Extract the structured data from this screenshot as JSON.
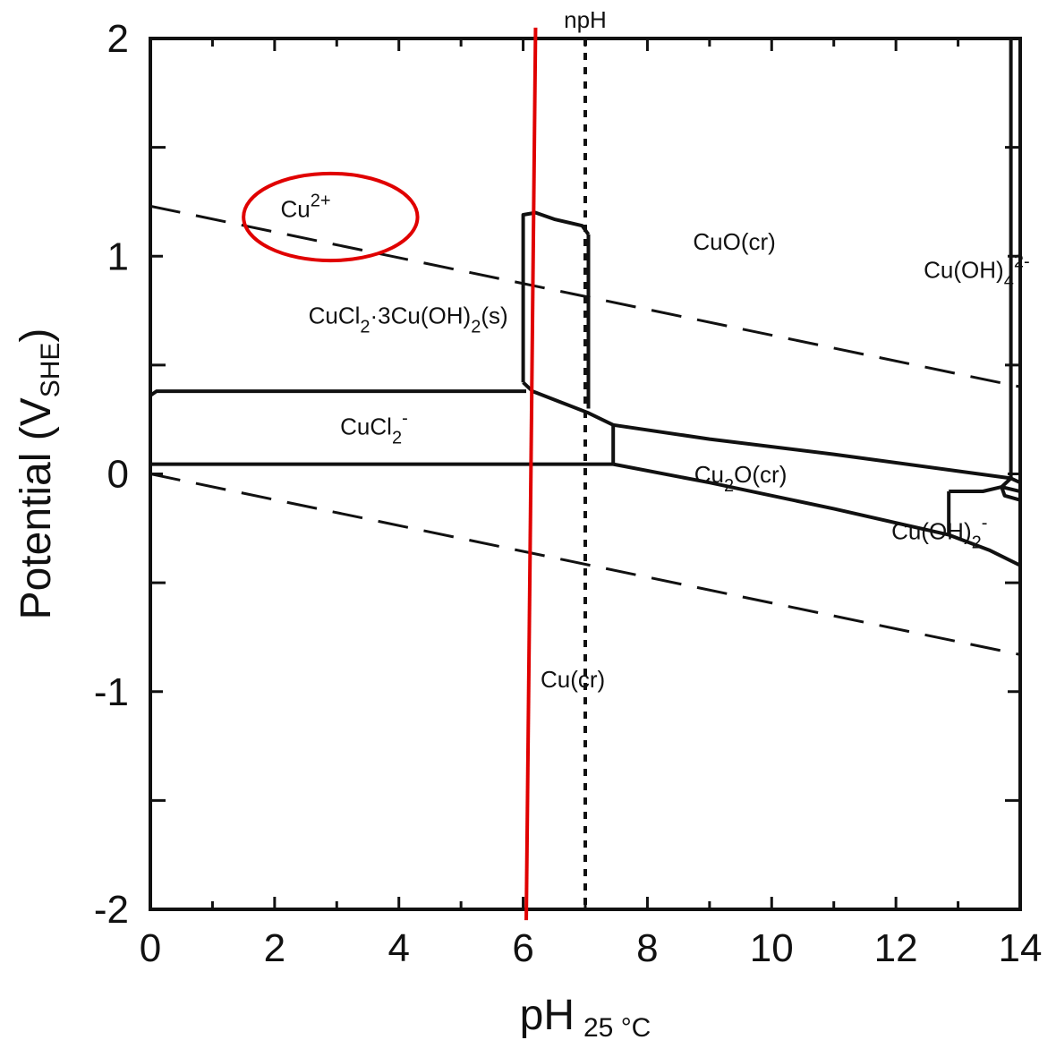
{
  "chart_data": {
    "type": "line",
    "title": "",
    "xlabel": {
      "main": "pH",
      "sub": "25 °C"
    },
    "ylabel": {
      "main": "Potential (V",
      "sub": "SHE",
      "close": ")"
    },
    "xlim": [
      0,
      14
    ],
    "ylim": [
      -2,
      2
    ],
    "x_ticks": [
      0,
      2,
      4,
      6,
      8,
      10,
      12,
      14
    ],
    "x_minor_ticks": [
      1,
      3,
      5,
      7,
      9,
      11,
      13
    ],
    "y_ticks": [
      -2,
      -1,
      0,
      1,
      2
    ],
    "y_minor_ticks": [
      -1.5,
      -0.5,
      0.5,
      1.5
    ],
    "water_lines": [
      {
        "x": [
          0,
          14
        ],
        "y": [
          1.23,
          0.4
        ]
      },
      {
        "x": [
          0,
          14
        ],
        "y": [
          0.0,
          -0.83
        ]
      }
    ],
    "npH_line": {
      "label": "npH",
      "x": 7.0
    },
    "red_line": {
      "x": [
        6.2,
        6.05
      ],
      "y": [
        2.05,
        -2.05
      ],
      "color": "#e00000"
    },
    "highlight_ellipse": {
      "cx": 2.9,
      "cy": 1.18,
      "rx": 1.4,
      "ry": 0.2,
      "color": "#e00000"
    },
    "boundaries": [
      {
        "x": [
          0,
          0.1,
          6.05
        ],
        "y": [
          0.36,
          0.38,
          0.38
        ]
      },
      {
        "x": [
          0,
          7.45
        ],
        "y": [
          0.045,
          0.045
        ]
      },
      {
        "x": [
          6.0,
          6.0,
          6.2,
          6.5,
          6.95,
          7.05
        ],
        "y": [
          0.42,
          1.19,
          1.2,
          1.17,
          1.14,
          1.1
        ]
      },
      {
        "x": [
          7.05,
          7.05
        ],
        "y": [
          1.1,
          0.3
        ]
      },
      {
        "x": [
          6.0,
          6.15,
          6.6,
          7.05,
          7.45,
          9.0,
          11.0,
          13.85,
          14.0
        ],
        "y": [
          0.42,
          0.38,
          0.33,
          0.28,
          0.225,
          0.16,
          0.09,
          -0.02,
          -0.04
        ]
      },
      {
        "x": [
          7.45,
          7.45
        ],
        "y": [
          0.225,
          0.045
        ]
      },
      {
        "x": [
          7.45,
          9.0,
          11.0,
          12.85,
          13.5,
          14.0
        ],
        "y": [
          0.045,
          -0.04,
          -0.16,
          -0.28,
          -0.35,
          -0.42
        ]
      },
      {
        "x": [
          12.85,
          12.85
        ],
        "y": [
          -0.08,
          -0.28
        ]
      },
      {
        "x": [
          12.85,
          13.4,
          13.7,
          14.0
        ],
        "y": [
          -0.08,
          -0.08,
          -0.06,
          -0.08
        ]
      },
      {
        "x": [
          13.85,
          13.85
        ],
        "y": [
          2.0,
          -0.02
        ]
      },
      {
        "x": [
          13.85,
          13.7,
          13.75,
          14.0
        ],
        "y": [
          -0.02,
          -0.06,
          -0.1,
          -0.12
        ]
      }
    ],
    "regions": [
      {
        "base": "Cu",
        "sup": "2+",
        "sub": "",
        "sub_text": "",
        "x": 2.5,
        "y": 1.18
      },
      {
        "base": "CuO(cr)",
        "sup": "",
        "sub": "",
        "sub_text": "",
        "x": 9.4,
        "y": 1.03
      },
      {
        "base": "Cu(OH)",
        "sub": "4",
        "sup": "2-",
        "sub_text": "",
        "x": 13.3,
        "y": 0.9
      },
      {
        "base": "CuCl",
        "sub": "2",
        "sub_text": "·3Cu(OH)",
        "sub2": "2",
        "tail": "(s)",
        "x": 4.15,
        "y": 0.69
      },
      {
        "base": "CuCl",
        "sub": "2",
        "sup": "-",
        "sub_text": "",
        "x": 3.6,
        "y": 0.18
      },
      {
        "base": "Cu",
        "sub": "2",
        "tail": "O(cr)",
        "sup": "",
        "sub_text": "",
        "x": 9.5,
        "y": -0.04
      },
      {
        "base": "Cu(OH)",
        "sub": "2",
        "sup": "-",
        "sub_text": "",
        "x": 12.7,
        "y": -0.3
      },
      {
        "base": "Cu(cr)",
        "sup": "",
        "sub": "",
        "sub_text": "",
        "x": 6.8,
        "y": -0.98
      }
    ]
  }
}
